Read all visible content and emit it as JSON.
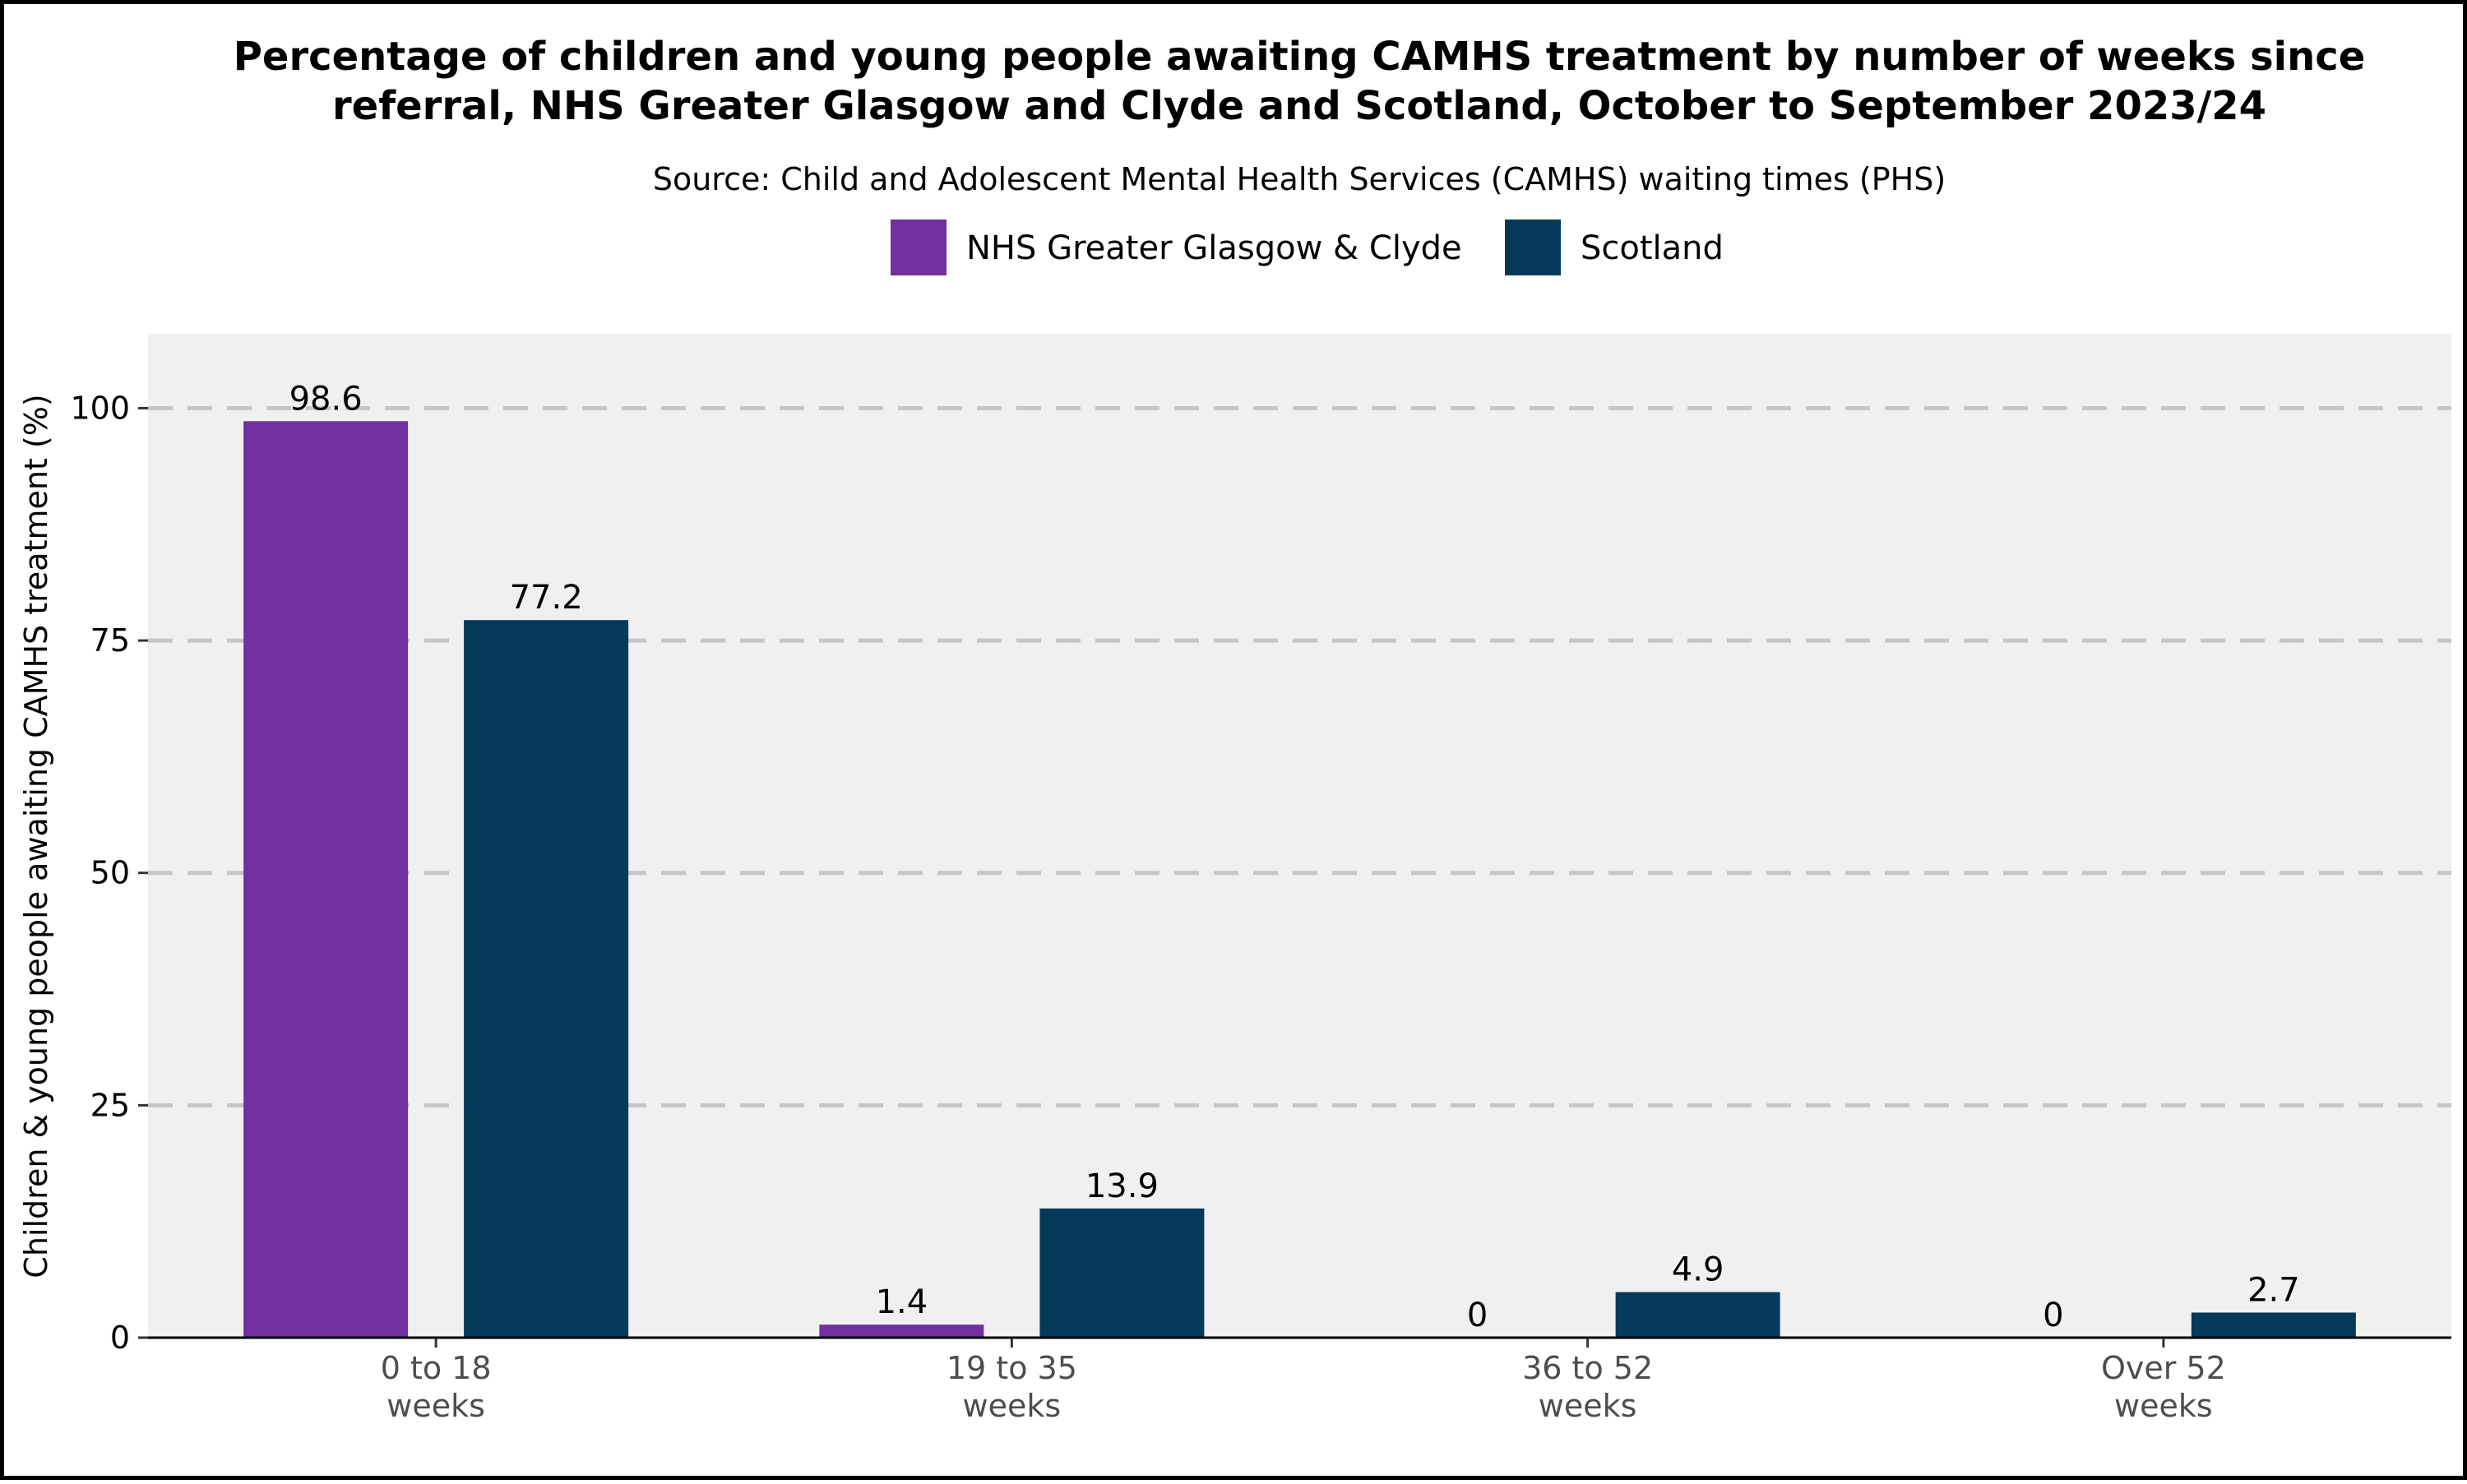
{
  "chart_data": {
    "type": "bar",
    "title_line1": "Percentage of children and young people awaiting CAMHS treatment by number of weeks since",
    "title_line2": "referral, NHS Greater Glasgow and Clyde and Scotland, October to September 2023/24",
    "subtitle": "Source: Child and Adolescent Mental Health Services (CAMHS) waiting times (PHS)",
    "ylabel": "Children & young people awaiting CAMHS treatment (%)",
    "xlabel": "",
    "ylim": [
      0,
      108
    ],
    "yticks": [
      0,
      25,
      50,
      75,
      100
    ],
    "grid": "dashed horizontal",
    "legend_position": "top",
    "categories": [
      [
        "0 to 18",
        "weeks"
      ],
      [
        "19 to 35",
        "weeks"
      ],
      [
        "36 to 52",
        "weeks"
      ],
      [
        "Over 52",
        "weeks"
      ]
    ],
    "series": [
      {
        "name": "NHS Greater Glasgow & Clyde",
        "color": "#7030a0",
        "values": [
          98.6,
          1.4,
          0,
          0
        ]
      },
      {
        "name": "Scotland",
        "color": "#06385a",
        "values": [
          77.2,
          13.9,
          4.9,
          2.7
        ]
      }
    ]
  }
}
